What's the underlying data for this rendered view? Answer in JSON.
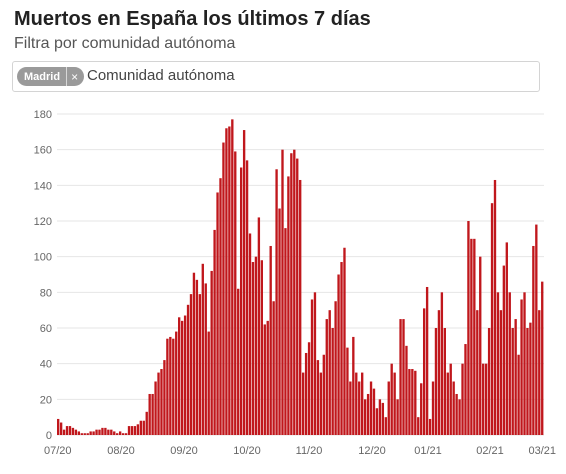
{
  "title": "Muertos en España los últimos 7 días",
  "subtitle": "Filtra por comunidad autónoma",
  "filter": {
    "chip_label": "Madrid",
    "chip_remove": "×",
    "placeholder": "Comunidad autónoma"
  },
  "colors": {
    "bar": "#c0171c",
    "grid": "#e6e6e6",
    "chip": "#9a9a9a"
  },
  "chart_data": {
    "type": "bar",
    "grid": true,
    "ylim": [
      0,
      180
    ],
    "yticks": [
      0,
      20,
      40,
      60,
      80,
      100,
      120,
      140,
      160,
      180
    ],
    "xticks": [
      "07/20",
      "08/20",
      "09/20",
      "10/20",
      "11/20",
      "12/20",
      "01/21",
      "02/21",
      "03/21"
    ],
    "values": [
      9,
      7,
      3,
      5,
      5,
      4,
      3,
      2,
      1,
      1,
      1,
      2,
      2,
      3,
      3,
      4,
      4,
      3,
      3,
      2,
      1,
      2,
      1,
      1,
      5,
      5,
      5,
      6,
      8,
      8,
      13,
      23,
      23,
      30,
      35,
      37,
      42,
      54,
      55,
      54,
      58,
      66,
      64,
      67,
      73,
      79,
      91,
      87,
      79,
      96,
      85,
      58,
      92,
      115,
      136,
      144,
      164,
      172,
      173,
      177,
      159,
      82,
      150,
      171,
      154,
      113,
      97,
      100,
      122,
      98,
      62,
      64,
      106,
      75,
      149,
      127,
      160,
      116,
      145,
      158,
      160,
      155,
      143,
      35,
      46,
      52,
      76,
      80,
      42,
      35,
      45,
      65,
      70,
      60,
      75,
      90,
      97,
      105,
      49,
      30,
      55,
      35,
      30,
      35,
      20,
      23,
      30,
      26,
      15,
      20,
      18,
      10,
      30,
      40,
      35,
      20,
      65,
      65,
      50,
      37,
      37,
      36,
      10,
      29,
      71,
      83,
      9,
      30,
      60,
      70,
      80,
      60,
      35,
      40,
      30,
      23,
      20,
      40,
      51,
      120,
      110,
      110,
      70,
      100,
      40,
      40,
      60,
      130,
      143,
      80,
      70,
      95,
      108,
      80,
      60,
      65,
      45,
      76,
      80,
      60,
      63,
      106,
      118,
      70,
      86
    ]
  }
}
